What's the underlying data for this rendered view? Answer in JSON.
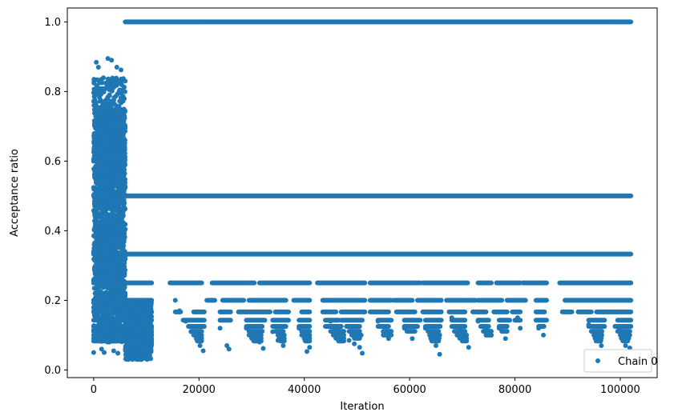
{
  "chart_data": {
    "type": "scatter",
    "xlabel": "Iteration",
    "ylabel": "Acceptance ratio",
    "xlim": [
      -5000,
      107000
    ],
    "ylim": [
      -0.022,
      1.04
    ],
    "xticks": [
      0,
      20000,
      40000,
      60000,
      80000,
      100000
    ],
    "xtick_labels": [
      "0",
      "20000",
      "40000",
      "60000",
      "80000",
      "100000"
    ],
    "yticks": [
      0.0,
      0.2,
      0.4,
      0.6,
      0.8,
      1.0
    ],
    "ytick_labels": [
      "0.0",
      "0.2",
      "0.4",
      "0.6",
      "0.8",
      "1.0"
    ],
    "grid": false,
    "legend_position": "lower-right",
    "series": [
      {
        "name": "Chain 0",
        "color": "#1f77b4",
        "marker": "circle",
        "points": [
          [
            0,
            0.05
          ],
          [
            300,
            0.8
          ],
          [
            500,
            0.884
          ],
          [
            900,
            0.87
          ],
          [
            1500,
            0.06
          ],
          [
            2000,
            0.05
          ],
          [
            2700,
            0.895
          ],
          [
            3400,
            0.89
          ],
          [
            4400,
            0.87
          ],
          [
            5200,
            0.862
          ],
          [
            3800,
            0.055
          ],
          [
            4600,
            0.048
          ],
          [
            7500,
            0.13
          ],
          [
            8300,
            0.05
          ],
          [
            8900,
            0.03
          ],
          [
            9600,
            0.06
          ],
          [
            10400,
            0.035
          ],
          [
            11000,
            0.1
          ],
          [
            15500,
            0.2
          ],
          [
            16300,
            0.17
          ],
          [
            17500,
            0.14
          ],
          [
            18500,
            0.11
          ],
          [
            19500,
            0.09
          ],
          [
            20200,
            0.07
          ],
          [
            20800,
            0.055
          ],
          [
            25300,
            0.07
          ],
          [
            25700,
            0.06
          ],
          [
            24000,
            0.12
          ],
          [
            29000,
            0.12
          ],
          [
            30500,
            0.1
          ],
          [
            31500,
            0.08
          ],
          [
            32200,
            0.062
          ],
          [
            34000,
            0.11
          ],
          [
            35000,
            0.085
          ],
          [
            36000,
            0.07
          ],
          [
            39000,
            0.12
          ],
          [
            40000,
            0.09
          ],
          [
            41000,
            0.065
          ],
          [
            40500,
            0.053
          ],
          [
            45000,
            0.14
          ],
          [
            46000,
            0.12
          ],
          [
            47000,
            0.1
          ],
          [
            48500,
            0.085
          ],
          [
            49500,
            0.075
          ],
          [
            50500,
            0.065
          ],
          [
            51000,
            0.048
          ],
          [
            54000,
            0.14
          ],
          [
            55000,
            0.11
          ],
          [
            56000,
            0.09
          ],
          [
            59000,
            0.12
          ],
          [
            60500,
            0.09
          ],
          [
            63000,
            0.12
          ],
          [
            64000,
            0.1
          ],
          [
            65000,
            0.07
          ],
          [
            65700,
            0.045
          ],
          [
            68000,
            0.15
          ],
          [
            69500,
            0.12
          ],
          [
            70500,
            0.09
          ],
          [
            71200,
            0.065
          ],
          [
            73000,
            0.14
          ],
          [
            74500,
            0.12
          ],
          [
            75500,
            0.1
          ],
          [
            77000,
            0.12
          ],
          [
            78200,
            0.09
          ],
          [
            80500,
            0.15
          ],
          [
            81000,
            0.12
          ],
          [
            84500,
            0.12
          ],
          [
            85400,
            0.1
          ],
          [
            94000,
            0.13
          ],
          [
            95000,
            0.1
          ],
          [
            95800,
            0.085
          ],
          [
            96400,
            0.07
          ],
          [
            99800,
            0.12
          ],
          [
            100500,
            0.09
          ],
          [
            101000,
            0.07
          ],
          [
            101800,
            0.063
          ],
          [
            101900,
            0.25
          ]
        ]
      }
    ]
  }
}
